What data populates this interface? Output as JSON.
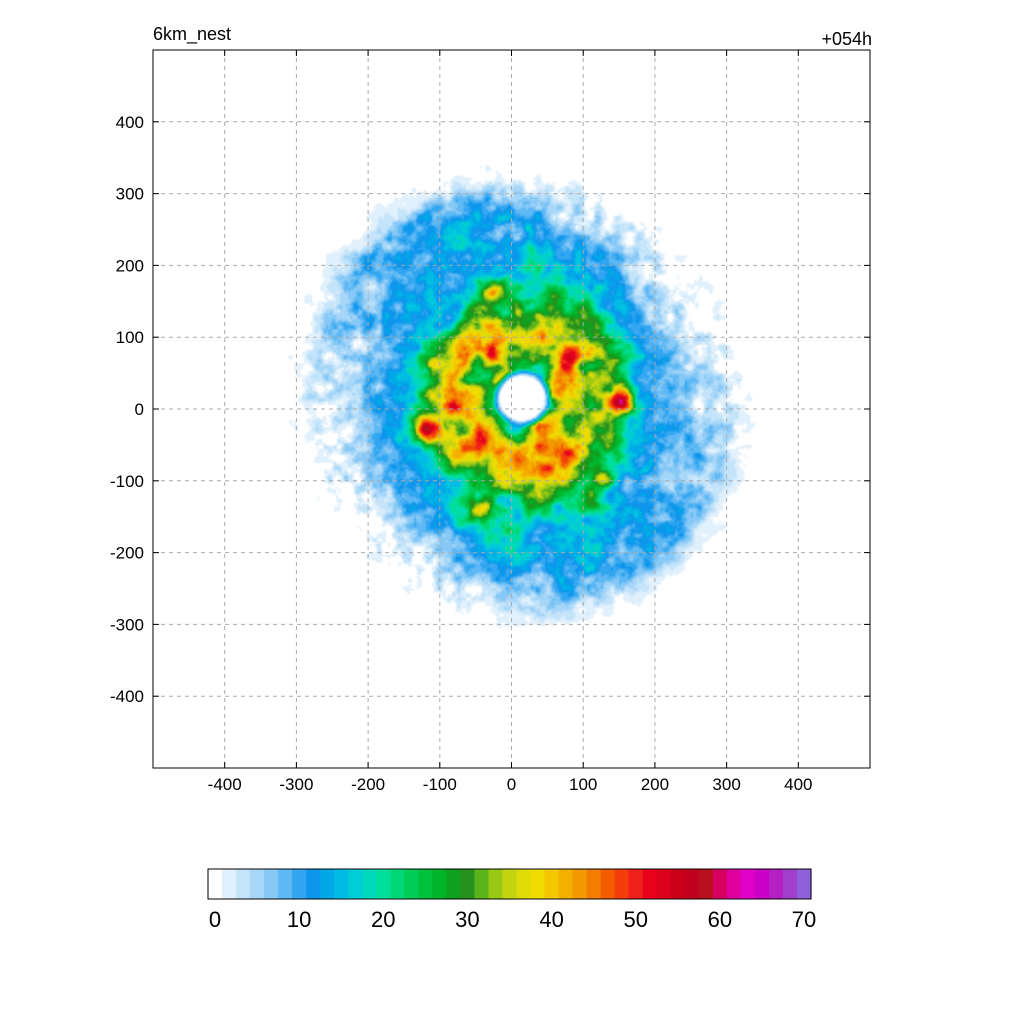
{
  "chart_data": {
    "type": "heatmap",
    "title": "6km_nest",
    "forecast_hour_label": "+054h",
    "xlim": [
      -500,
      500
    ],
    "ylim": [
      -500,
      500
    ],
    "x_ticks": [
      -400,
      -300,
      -200,
      -100,
      0,
      100,
      200,
      300,
      400
    ],
    "y_ticks": [
      400,
      300,
      200,
      100,
      0,
      -100,
      -200,
      -300,
      -400
    ],
    "x_tick_labels": [
      "-400",
      "-300",
      "-200",
      "-100",
      "0",
      "100",
      "200",
      "300",
      "400"
    ],
    "y_tick_labels": [
      "400",
      "300",
      "200",
      "100",
      "0",
      "-100",
      "-200",
      "-300",
      "-400"
    ],
    "grid": true,
    "colorbar": {
      "min": 0,
      "max": 70,
      "ticks": [
        0,
        10,
        20,
        30,
        40,
        50,
        60,
        70
      ],
      "tick_labels": [
        "0",
        "10",
        "20",
        "30",
        "40",
        "50",
        "60",
        "70"
      ],
      "colors": [
        "#ffffff",
        "#e0f0fc",
        "#c4e4fa",
        "#a6d6f8",
        "#86c8f6",
        "#5eb8f4",
        "#32a6f0",
        "#0e96ec",
        "#00a8e8",
        "#00bce4",
        "#00ccd8",
        "#00d8bc",
        "#00de9c",
        "#00d878",
        "#00cc58",
        "#00c03c",
        "#00b42a",
        "#10a020",
        "#28901c",
        "#5cb41c",
        "#98c814",
        "#c4d410",
        "#e0dc08",
        "#f0dc00",
        "#f4c800",
        "#f4b000",
        "#f49800",
        "#f47c00",
        "#f45c00",
        "#f43c0c",
        "#f0201c",
        "#e8001c",
        "#dc001c",
        "#cc0018",
        "#c0001c",
        "#b8101c",
        "#d80060",
        "#e000a0",
        "#e000c8",
        "#c800c8",
        "#b420c4",
        "#a040cc",
        "#9060dc"
      ]
    },
    "features": {
      "eye_center": [
        15,
        15
      ],
      "eye_radius": 42,
      "eyewall_max": 52,
      "rainbands": 2
    }
  }
}
